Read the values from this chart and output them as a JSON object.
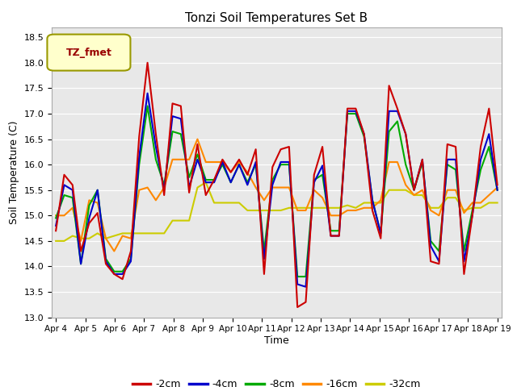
{
  "title": "Tonzi Soil Temperatures Set B",
  "xlabel": "Time",
  "ylabel": "Soil Temperature (C)",
  "ylim": [
    13.0,
    18.7
  ],
  "yticks": [
    13.0,
    13.5,
    14.0,
    14.5,
    15.0,
    15.5,
    16.0,
    16.5,
    17.0,
    17.5,
    18.0,
    18.5
  ],
  "xtick_labels": [
    "Apr 4",
    "Apr 5",
    "Apr 6",
    "Apr 7",
    "Apr 8",
    "Apr 9",
    "Apr 10",
    "Apr 11",
    "Apr 12",
    "Apr 13",
    "Apr 14",
    "Apr 15",
    "Apr 16",
    "Apr 17",
    "Apr 18",
    "Apr 19"
  ],
  "colors": {
    "-2cm": "#cc0000",
    "-4cm": "#0000cc",
    "-8cm": "#00aa00",
    "-16cm": "#ff8800",
    "-32cm": "#cccc00"
  },
  "legend_label": "TZ_fmet",
  "legend_bg": "#ffffcc",
  "legend_border": "#999900",
  "bg_color": "#e8e8e8",
  "series": {
    "-2cm": [
      14.7,
      15.8,
      15.6,
      14.3,
      14.85,
      15.05,
      14.05,
      13.85,
      13.75,
      14.3,
      16.55,
      18.0,
      16.6,
      15.4,
      17.2,
      17.15,
      15.45,
      16.4,
      15.4,
      15.7,
      16.1,
      15.85,
      16.1,
      15.8,
      16.3,
      13.85,
      15.95,
      16.3,
      16.35,
      13.2,
      13.3,
      15.8,
      16.35,
      14.6,
      14.6,
      17.1,
      17.1,
      16.6,
      15.1,
      14.55,
      17.55,
      17.1,
      16.6,
      15.5,
      16.1,
      14.1,
      14.05,
      16.4,
      16.35,
      13.85,
      15.0,
      16.35,
      17.1,
      15.6
    ],
    "-4cm": [
      14.8,
      15.6,
      15.5,
      14.05,
      14.95,
      15.5,
      14.1,
      13.85,
      13.85,
      14.1,
      16.15,
      17.4,
      16.35,
      15.5,
      16.95,
      16.9,
      15.55,
      16.1,
      15.65,
      15.65,
      16.05,
      15.65,
      16.0,
      15.6,
      16.05,
      14.15,
      15.6,
      16.05,
      16.05,
      13.65,
      13.6,
      15.65,
      15.98,
      14.6,
      14.6,
      17.05,
      17.05,
      16.6,
      15.3,
      14.65,
      17.05,
      17.05,
      16.6,
      15.5,
      16.1,
      14.4,
      14.1,
      16.1,
      16.1,
      14.1,
      15.0,
      16.1,
      16.6,
      15.5
    ],
    "-8cm": [
      14.95,
      15.4,
      15.35,
      14.05,
      15.2,
      15.5,
      14.15,
      13.9,
      13.9,
      14.15,
      16.0,
      17.15,
      16.1,
      15.6,
      16.65,
      16.6,
      15.75,
      16.2,
      15.7,
      15.7,
      16.0,
      15.65,
      16.0,
      15.65,
      16.0,
      14.3,
      15.7,
      16.0,
      16.0,
      13.8,
      13.8,
      15.7,
      15.8,
      14.7,
      14.7,
      17.0,
      17.0,
      16.55,
      15.3,
      14.65,
      16.65,
      16.85,
      16.0,
      15.5,
      16.05,
      14.5,
      14.3,
      16.0,
      15.9,
      14.3,
      15.1,
      15.9,
      16.35,
      15.5
    ],
    "-16cm": [
      15.0,
      15.0,
      15.15,
      14.5,
      15.3,
      15.25,
      14.55,
      14.3,
      14.6,
      14.55,
      15.5,
      15.55,
      15.3,
      15.55,
      16.1,
      16.1,
      16.1,
      16.5,
      16.05,
      16.05,
      16.05,
      15.85,
      16.05,
      15.85,
      15.55,
      15.3,
      15.55,
      15.55,
      15.55,
      15.1,
      15.1,
      15.5,
      15.35,
      15.0,
      15.0,
      15.1,
      15.1,
      15.15,
      15.15,
      15.3,
      16.05,
      16.05,
      15.6,
      15.4,
      15.5,
      15.1,
      15.0,
      15.5,
      15.5,
      15.05,
      15.25,
      15.25,
      15.4,
      15.55
    ],
    "-32cm": [
      14.5,
      14.5,
      14.6,
      14.55,
      14.55,
      14.65,
      14.55,
      14.6,
      14.65,
      14.65,
      14.65,
      14.65,
      14.65,
      14.65,
      14.9,
      14.9,
      14.9,
      15.55,
      15.65,
      15.25,
      15.25,
      15.25,
      15.25,
      15.1,
      15.1,
      15.1,
      15.1,
      15.1,
      15.15,
      15.15,
      15.15,
      15.15,
      15.15,
      15.15,
      15.15,
      15.2,
      15.15,
      15.25,
      15.25,
      15.25,
      15.5,
      15.5,
      15.5,
      15.4,
      15.4,
      15.15,
      15.15,
      15.35,
      15.35,
      15.1,
      15.15,
      15.15,
      15.25,
      15.25
    ]
  }
}
